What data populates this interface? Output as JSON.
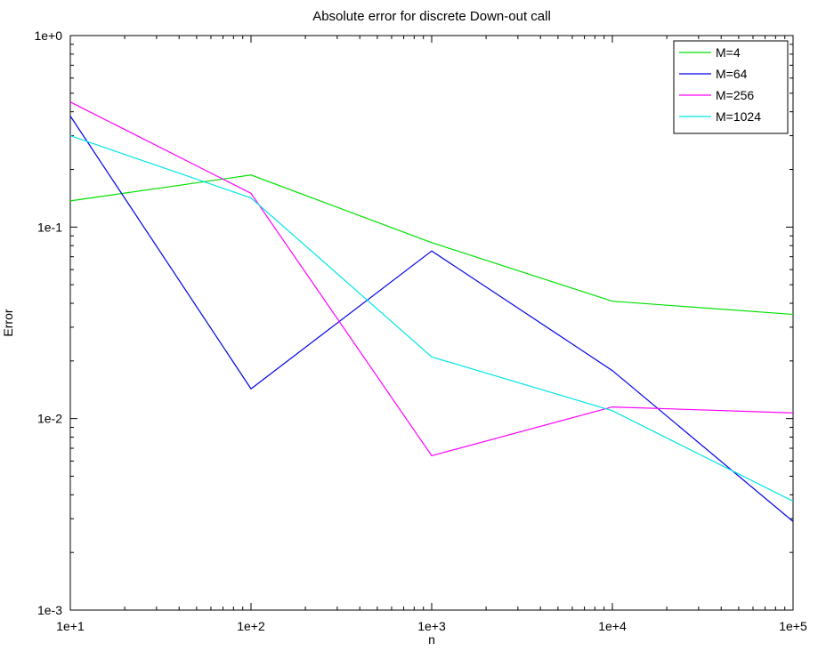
{
  "chart_data": {
    "type": "line",
    "title": "Absolute error for discrete Down-out call",
    "xlabel": "n",
    "ylabel": "Error",
    "xscale": "log",
    "yscale": "log",
    "xlim": [
      10,
      100000
    ],
    "ylim": [
      0.001,
      1
    ],
    "x": [
      10,
      100,
      1000,
      10000,
      100000
    ],
    "x_tick_values": [
      10,
      100,
      1000,
      10000,
      100000
    ],
    "x_tick_labels": [
      "1e+1",
      "1e+2",
      "1e+3",
      "1e+4",
      "1e+5"
    ],
    "y_tick_values": [
      0.001,
      0.01,
      0.1,
      1
    ],
    "y_tick_labels": [
      "1e-3",
      "1e-2",
      "1e-1",
      "1e+0"
    ],
    "grid": false,
    "legend_position": "top-right",
    "series": [
      {
        "name": "M=4",
        "color": "#00e000",
        "values": [
          0.137,
          0.187,
          0.083,
          0.041,
          0.035
        ]
      },
      {
        "name": "M=64",
        "color": "#0000e6",
        "values": [
          0.38,
          0.0143,
          0.075,
          0.0178,
          0.0029
        ]
      },
      {
        "name": "M=256",
        "color": "#ff00ff",
        "values": [
          0.45,
          0.15,
          0.0064,
          0.0115,
          0.0107
        ]
      },
      {
        "name": "M=1024",
        "color": "#00e5e5",
        "values": [
          0.3,
          0.142,
          0.021,
          0.011,
          0.0037
        ]
      }
    ]
  }
}
